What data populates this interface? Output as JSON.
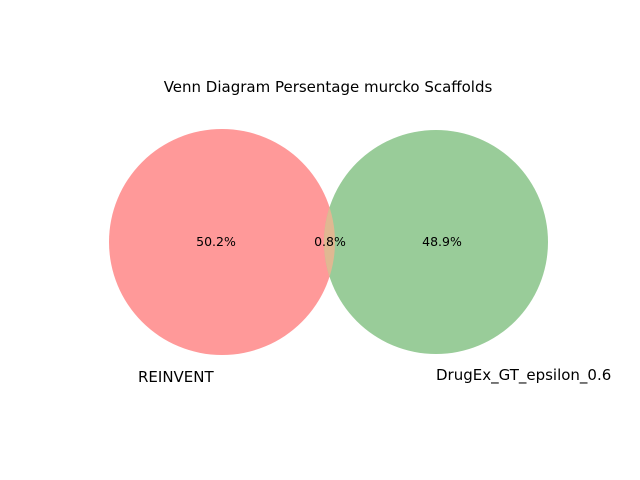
{
  "title": "Venn Diagram Persentage murcko Scaffolds",
  "colors": {
    "set_a": "#ff9999",
    "set_b": "#99cc99",
    "overlap": "#e0b892",
    "background": "#ffffff",
    "text": "#000000"
  },
  "sets": [
    {
      "name": "REINVENT",
      "only_label": "50.2%"
    },
    {
      "name": "DrugEx_GT_epsilon_0.6",
      "only_label": "48.9%"
    }
  ],
  "overlap_label": "0.8%",
  "chart_data": {
    "type": "venn",
    "title": "Venn Diagram Persentage murcko Scaffolds",
    "sets": [
      "REINVENT",
      "DrugEx_GT_epsilon_0.6"
    ],
    "regions": [
      {
        "sets": [
          "REINVENT"
        ],
        "value": 50.2,
        "label": "50.2%"
      },
      {
        "sets": [
          "REINVENT",
          "DrugEx_GT_epsilon_0.6"
        ],
        "value": 0.8,
        "label": "0.8%"
      },
      {
        "sets": [
          "DrugEx_GT_epsilon_0.6"
        ],
        "value": 48.9,
        "label": "48.9%"
      }
    ]
  }
}
